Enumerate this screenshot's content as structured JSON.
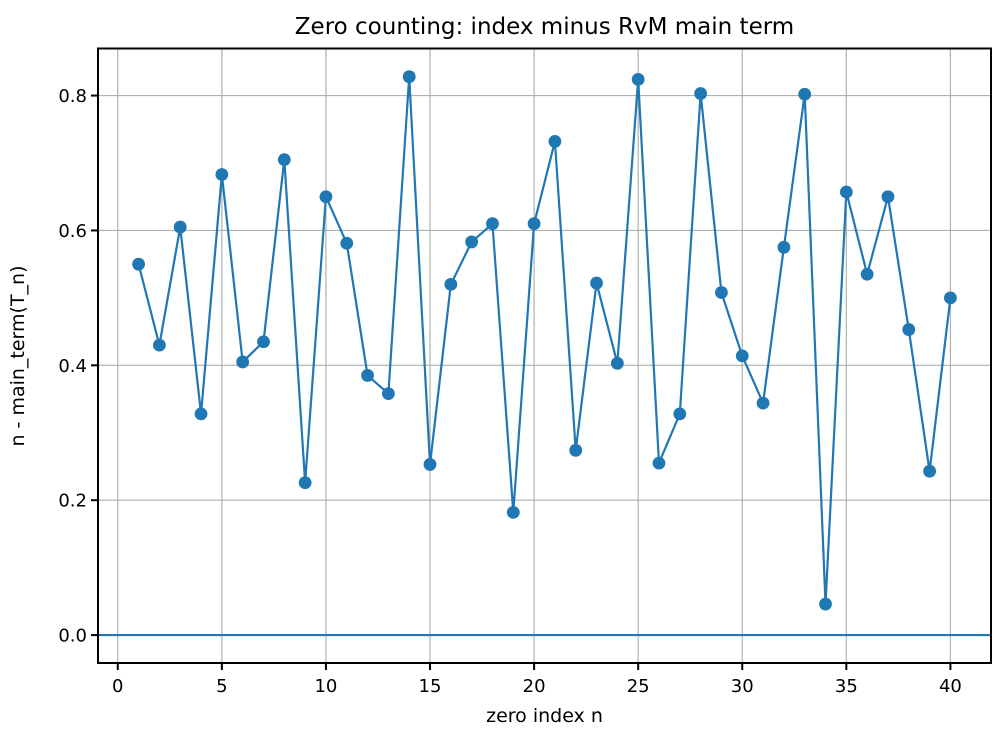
{
  "chart_data": {
    "type": "line",
    "title": "Zero counting: index minus RvM main term",
    "xlabel": "zero index n",
    "ylabel": "n - main_term(T_n)",
    "xlim": [
      -0.95,
      41.95
    ],
    "ylim": [
      -0.0414,
      0.8698
    ],
    "grid": true,
    "legend": "none",
    "line_color": "#1f77b4",
    "grid_color": "#b0b0b0",
    "spine_color": "#000000",
    "marker": "o",
    "zero_line_y": 0.0,
    "xticks": {
      "values": [
        0,
        5,
        10,
        15,
        20,
        25,
        30,
        35,
        40
      ],
      "labels": [
        "0",
        "5",
        "10",
        "15",
        "20",
        "25",
        "30",
        "35",
        "40"
      ]
    },
    "yticks": {
      "values": [
        0.0,
        0.2,
        0.4,
        0.6,
        0.8
      ],
      "labels": [
        "0.0",
        "0.2",
        "0.4",
        "0.6",
        "0.8"
      ]
    },
    "x": [
      1,
      2,
      3,
      4,
      5,
      6,
      7,
      8,
      9,
      10,
      11,
      12,
      13,
      14,
      15,
      16,
      17,
      18,
      19,
      20,
      21,
      22,
      23,
      24,
      25,
      26,
      27,
      28,
      29,
      30,
      31,
      32,
      33,
      34,
      35,
      36,
      37,
      38,
      39,
      40
    ],
    "y": [
      0.55,
      0.43,
      0.605,
      0.328,
      0.683,
      0.405,
      0.435,
      0.705,
      0.226,
      0.65,
      0.581,
      0.385,
      0.358,
      0.828,
      0.253,
      0.52,
      0.583,
      0.61,
      0.182,
      0.61,
      0.732,
      0.274,
      0.522,
      0.403,
      0.824,
      0.255,
      0.328,
      0.803,
      0.508,
      0.414,
      0.344,
      0.575,
      0.802,
      0.046,
      0.657,
      0.535,
      0.65,
      0.453,
      0.243,
      0.5
    ]
  }
}
